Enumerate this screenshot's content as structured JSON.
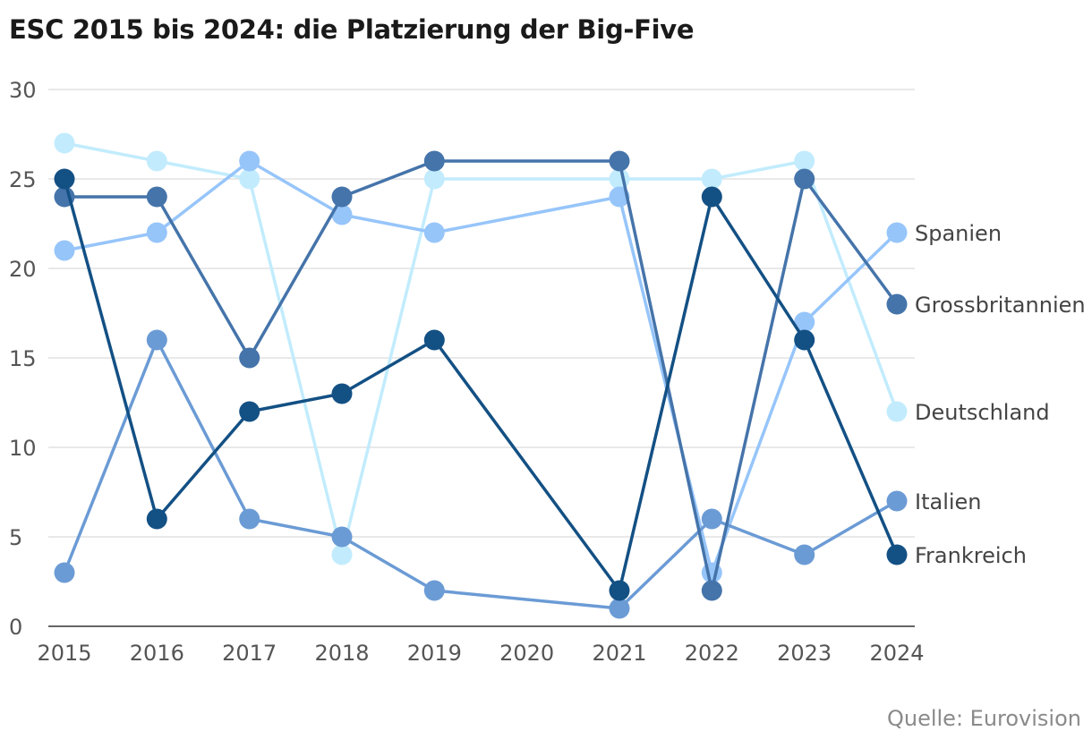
{
  "chart_data": {
    "type": "line",
    "title": "ESC 2015 bis 2024: die Platzierung der Big-Five",
    "source": "Quelle: Eurovision",
    "xlabel": "",
    "ylabel": "",
    "categories": [
      "2015",
      "2016",
      "2017",
      "2018",
      "2019",
      "2020",
      "2021",
      "2022",
      "2023",
      "2024"
    ],
    "ylim": [
      0,
      30
    ],
    "yticks": [
      0,
      5,
      10,
      15,
      20,
      25,
      30
    ],
    "grid": true,
    "legend": "end-labels-right",
    "series": [
      {
        "name": "Deutschland",
        "color": "#c2ecfd",
        "values": [
          27,
          26,
          25,
          4,
          25,
          null,
          25,
          25,
          26,
          12
        ]
      },
      {
        "name": "Spanien",
        "color": "#96c5fa",
        "values": [
          21,
          22,
          26,
          23,
          22,
          null,
          24,
          3,
          17,
          22
        ]
      },
      {
        "name": "Italien",
        "color": "#6b9bd5",
        "values": [
          3,
          16,
          6,
          5,
          2,
          null,
          1,
          6,
          4,
          7
        ]
      },
      {
        "name": "Grossbritannien",
        "color": "#4574aa",
        "values": [
          24,
          24,
          15,
          24,
          26,
          null,
          26,
          2,
          25,
          18
        ]
      },
      {
        "name": "Frankreich",
        "color": "#135084",
        "values": [
          25,
          6,
          12,
          13,
          16,
          null,
          2,
          24,
          16,
          4
        ]
      }
    ]
  }
}
